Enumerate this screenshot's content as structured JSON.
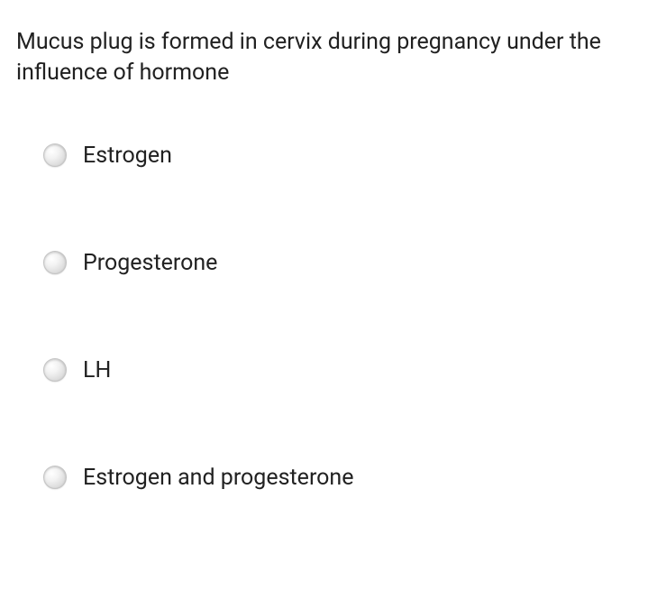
{
  "question": {
    "text": "Mucus plug is formed in cervix during pregnancy under the influence of hormone",
    "font_size": 25,
    "color": "#212121"
  },
  "options": [
    {
      "label": "Estrogen",
      "selected": false
    },
    {
      "label": "Progesterone",
      "selected": false
    },
    {
      "label": "LH",
      "selected": false
    },
    {
      "label": "Estrogen and progesterone",
      "selected": false
    }
  ],
  "style": {
    "background": "#ffffff",
    "radio_fill": "#e5e5e5",
    "radio_border": "#c4c4c4",
    "option_font_size": 25,
    "option_color": "#212121"
  }
}
